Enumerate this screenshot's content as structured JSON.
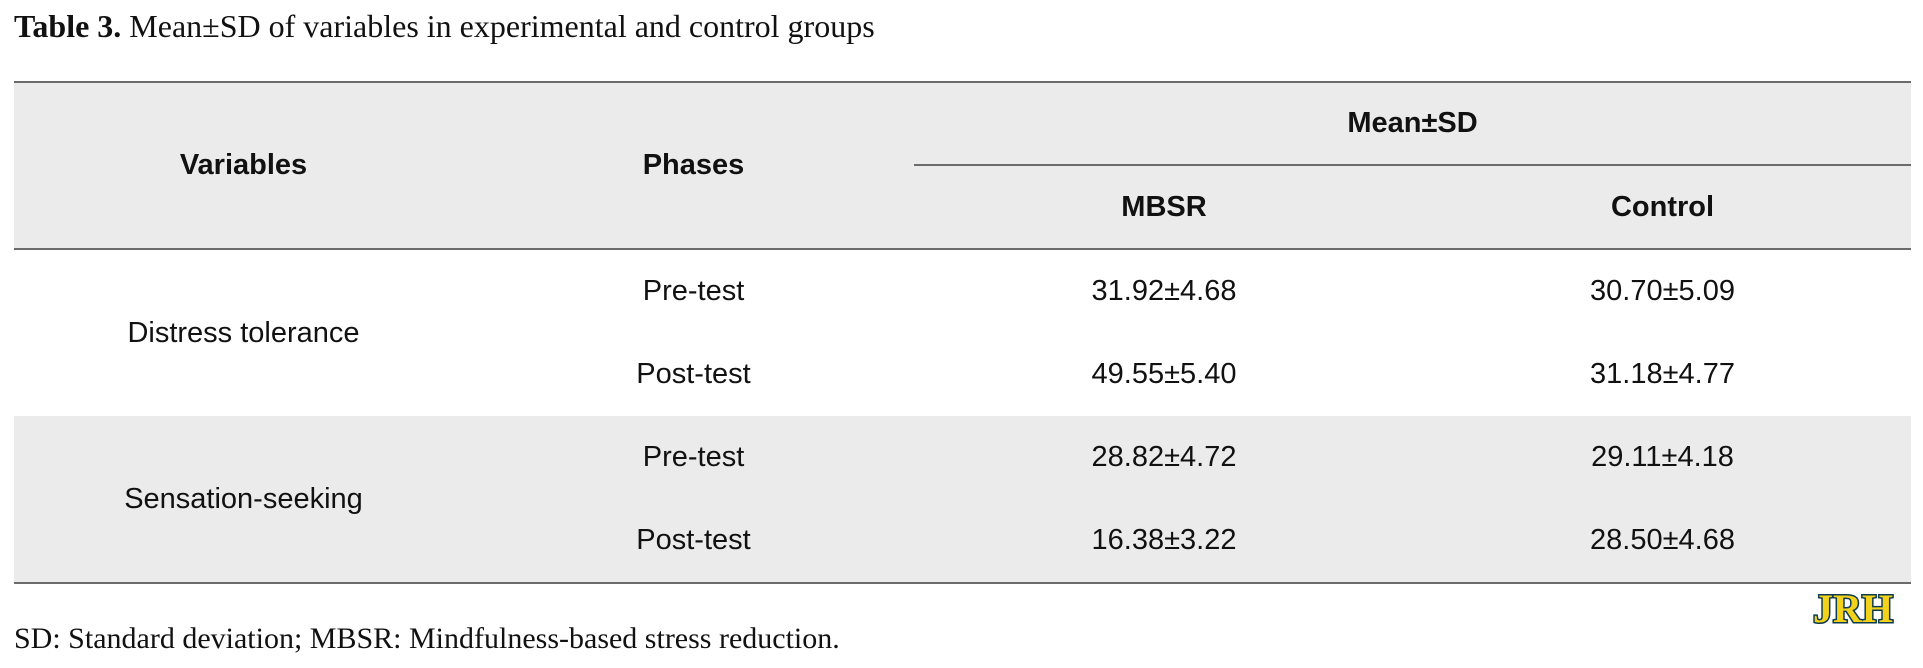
{
  "caption": {
    "label": "Table 3.",
    "text": " Mean±SD of variables in experimental and control groups"
  },
  "table": {
    "headers": {
      "variables": "Variables",
      "phases": "Phases",
      "mean_sd": "Mean±SD",
      "mbsr": "MBSR",
      "control": "Control"
    },
    "groups": [
      {
        "variable": "Distress tolerance",
        "rows": [
          {
            "phase": "Pre-test",
            "mbsr": "31.92±4.68",
            "control": "30.70±5.09"
          },
          {
            "phase": "Post-test",
            "mbsr": "49.55±5.40",
            "control": "31.18±4.77"
          }
        ]
      },
      {
        "variable": "Sensation-seeking",
        "rows": [
          {
            "phase": "Pre-test",
            "mbsr": "28.82±4.72",
            "control": "29.11±4.18"
          },
          {
            "phase": "Post-test",
            "mbsr": "16.38±3.22",
            "control": "28.50±4.68"
          }
        ]
      }
    ]
  },
  "footnote": "SD: Standard deviation; MBSR: Mindfulness-based stress reduction.",
  "logo": {
    "text": "JRH",
    "color_fill": "#f2d21b",
    "color_outline": "#0d3b4f"
  }
}
